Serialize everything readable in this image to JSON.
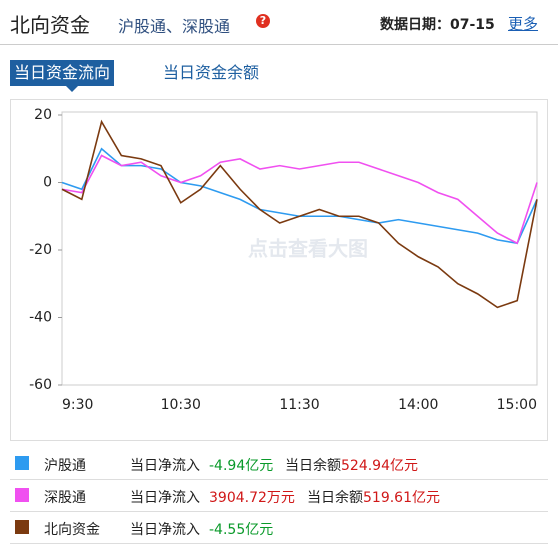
{
  "header": {
    "title": "北向资金",
    "subtitle": "沪股通、深股通",
    "date_label": "数据日期：07-15",
    "more": "更多"
  },
  "tabs": [
    "当日资金流向",
    "当日资金余额"
  ],
  "chart_data": {
    "type": "line",
    "watermark": "点击查看大图",
    "x": [
      "9:30",
      null,
      null,
      null,
      null,
      null,
      "10:30",
      null,
      null,
      null,
      null,
      null,
      "11:30",
      null,
      null,
      null,
      null,
      null,
      "14:00",
      null,
      null,
      null,
      null,
      null,
      "15:00"
    ],
    "ylim": [
      -60,
      20
    ],
    "yticks": [
      20,
      0,
      -20,
      -40,
      -60
    ],
    "series": [
      {
        "name": "沪股通",
        "color": "#2e9bf0",
        "values": [
          0,
          -2,
          10,
          5,
          5,
          4,
          0,
          -1,
          -3,
          -5,
          -8,
          -9,
          -10,
          -10,
          -10,
          -11,
          -12,
          -11,
          -12,
          -13,
          -14,
          -15,
          -17,
          -18,
          -5
        ]
      },
      {
        "name": "深股通",
        "color": "#f050f0",
        "values": [
          -2,
          -3,
          8,
          5,
          6,
          2,
          0,
          2,
          6,
          7,
          4,
          5,
          4,
          5,
          6,
          6,
          4,
          2,
          0,
          -3,
          -5,
          -10,
          -15,
          -18,
          0
        ]
      },
      {
        "name": "北向资金",
        "color": "#7b3a10",
        "values": [
          -2,
          -5,
          18,
          8,
          7,
          5,
          -6,
          -2,
          5,
          -2,
          -8,
          -12,
          -10,
          -8,
          -10,
          -10,
          -12,
          -18,
          -22,
          -25,
          -30,
          -33,
          -37,
          -35,
          -5
        ]
      }
    ]
  },
  "legend_rows": [
    {
      "inflow_label": "当日净流入",
      "inflow": "-4.94亿元",
      "balance_label": "当日余额",
      "balance": "524.94亿元"
    },
    {
      "inflow_label": "当日净流入",
      "inflow": "3904.72万元",
      "balance_label": "当日余额",
      "balance": "519.61亿元"
    },
    {
      "inflow_label": "当日净流入",
      "inflow": "-4.55亿元",
      "balance_label": "当日余额",
      "balance": ""
    }
  ]
}
